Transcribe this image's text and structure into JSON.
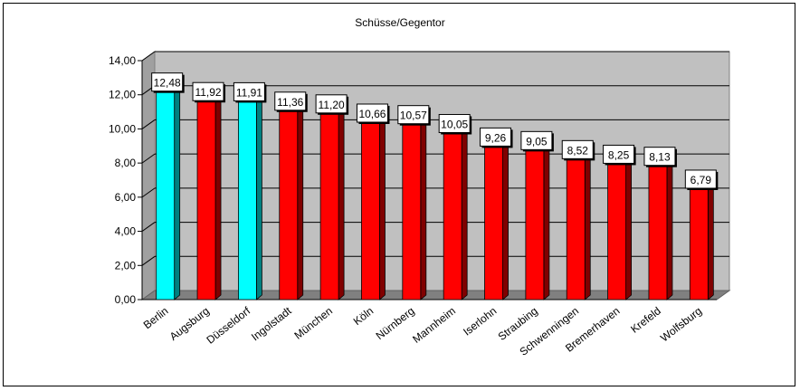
{
  "chart_data": {
    "type": "bar",
    "title": "Schüsse/Gegentor",
    "categories": [
      "Berlin",
      "Augsburg",
      "Düsseldorf",
      "Ingolstadt",
      "München",
      "Köln",
      "Nürnberg",
      "Mannheim",
      "Iserlohn",
      "Straubing",
      "Schwenningen",
      "Bremerhaven",
      "Krefeld",
      "Wolfsburg"
    ],
    "values": [
      12.48,
      11.92,
      11.91,
      11.36,
      11.2,
      10.66,
      10.57,
      10.05,
      9.26,
      9.05,
      8.52,
      8.25,
      8.13,
      6.79
    ],
    "value_labels": [
      "12,48",
      "11,92",
      "11,91",
      "11,36",
      "11,20",
      "10,66",
      "10,57",
      "10,05",
      "9,26",
      "9,05",
      "8,52",
      "8,25",
      "8,13",
      "6,79"
    ],
    "highlighted": [
      true,
      false,
      true,
      false,
      false,
      false,
      false,
      false,
      false,
      false,
      false,
      false,
      false,
      false
    ],
    "ylim": [
      0,
      14
    ],
    "yticks": [
      0,
      2,
      4,
      6,
      8,
      10,
      12,
      14
    ],
    "ytick_labels": [
      "0,00",
      "2,00",
      "4,00",
      "6,00",
      "8,00",
      "10,00",
      "12,00",
      "14,00"
    ],
    "grid": true,
    "legend": "none",
    "colors": {
      "bar": "#ff0000",
      "bar_side": "#800000",
      "bar_highlight": "#00ffff",
      "bar_highlight_side": "#008080",
      "wall": "#c0c0c0",
      "floor": "#808080"
    }
  }
}
